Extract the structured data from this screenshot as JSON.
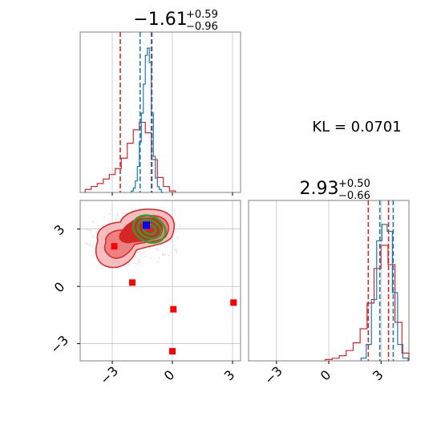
{
  "chart_data": [
    {
      "type": "histogram",
      "panel": "top-left",
      "parameter_index": 0,
      "title_value": "−1.61",
      "title_plus": "+0.59",
      "title_minus": "−0.96",
      "xlim": [
        -4.6,
        3.4
      ],
      "blue_quantiles": [
        -1.61,
        -1.02
      ],
      "red_quantiles": [
        -2.6,
        -1.05
      ],
      "blue_hist": {
        "x": [
          -2.0,
          -1.9,
          -1.8,
          -1.7,
          -1.6,
          -1.5,
          -1.4,
          -1.3,
          -1.2,
          -1.1,
          -1.0,
          -0.9,
          -0.8,
          -0.7,
          -0.6,
          -0.5
        ],
        "y": [
          0.01,
          0.03,
          0.08,
          0.18,
          0.35,
          0.55,
          0.75,
          0.95,
          1.0,
          0.9,
          0.55,
          0.25,
          0.1,
          0.04,
          0.02,
          0.0
        ]
      },
      "red_hist": {
        "x": [
          -4.2,
          -3.9,
          -3.6,
          -3.3,
          -3.0,
          -2.7,
          -2.4,
          -2.1,
          -1.8,
          -1.5,
          -1.2,
          -0.9,
          -0.6,
          -0.3,
          0.0
        ],
        "y": [
          0.02,
          0.04,
          0.06,
          0.09,
          0.12,
          0.16,
          0.23,
          0.33,
          0.42,
          0.47,
          0.4,
          0.22,
          0.1,
          0.04,
          0.01
        ]
      },
      "xticks": [
        -3,
        0,
        3
      ],
      "grid": true
    },
    {
      "type": "contour",
      "panel": "bottom-left",
      "xlim": [
        -4.6,
        3.4
      ],
      "ylim": [
        -3.9,
        4.5
      ],
      "xticks": [
        -3,
        0,
        3
      ],
      "yticks": [
        -3,
        0,
        3
      ],
      "xtick_labels": [
        "−3",
        "0",
        "3"
      ],
      "ytick_labels": [
        "−3",
        "0",
        "3"
      ],
      "red_points": [
        {
          "x": -2.9,
          "y": 2.1
        },
        {
          "x": -2.0,
          "y": 0.2
        },
        {
          "x": 0.05,
          "y": -1.2
        },
        {
          "x": 3.05,
          "y": -0.85
        },
        {
          "x": 0.0,
          "y": -3.4
        }
      ],
      "blue_point": {
        "x": -1.3,
        "y": 3.2
      },
      "red_contour_levels": 3,
      "green_contour_levels": 3,
      "green_center": {
        "x": -1.15,
        "y": 3.0
      },
      "grid": true
    },
    {
      "type": "histogram",
      "panel": "bottom-right",
      "parameter_index": 1,
      "title_value": "2.93",
      "title_plus": "+0.50",
      "title_minus": "−0.66",
      "xlim": [
        -4.6,
        4.6
      ],
      "xticks": [
        -3,
        0,
        3
      ],
      "xtick_labels": [
        "−3",
        "0",
        "3"
      ],
      "blue_quantiles": [
        2.93,
        3.7
      ],
      "red_quantiles": [
        2.27,
        3.43
      ],
      "blue_hist": {
        "x": [
          2.0,
          2.3,
          2.6,
          2.9,
          3.2,
          3.5,
          3.8,
          4.1,
          4.4
        ],
        "y": [
          0.02,
          0.12,
          0.45,
          0.88,
          1.0,
          0.95,
          0.5,
          0.12,
          0.02
        ]
      },
      "red_hist": {
        "x": [
          0.0,
          0.4,
          0.8,
          1.2,
          1.6,
          2.0,
          2.4,
          2.8,
          3.2,
          3.6,
          4.0,
          4.4
        ],
        "y": [
          0.01,
          0.02,
          0.04,
          0.08,
          0.14,
          0.25,
          0.45,
          0.72,
          0.9,
          0.75,
          0.3,
          0.06
        ]
      },
      "grid": true
    }
  ],
  "kl_label": "KL = 0.0701",
  "colors": {
    "blue": "#1f77b4",
    "red": "#d62728",
    "green": "#2ca02c",
    "marker_red": "#ff0000",
    "marker_blue": "#0000ff",
    "grid": "#b0b0b0",
    "frame": "#808080"
  }
}
